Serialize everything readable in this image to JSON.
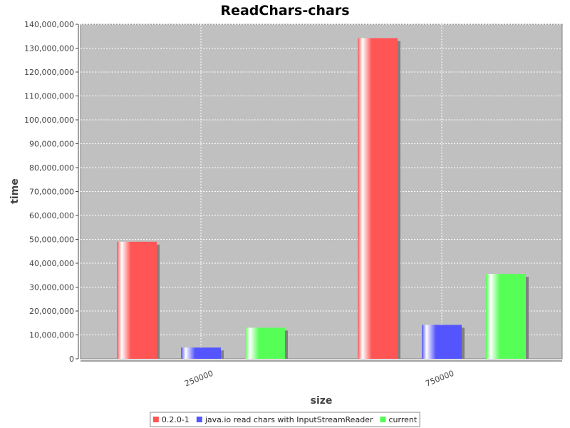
{
  "chart_data": {
    "type": "bar",
    "title": "ReadChars-chars",
    "xlabel": "size",
    "ylabel": "time",
    "categories": [
      "250000",
      "750000"
    ],
    "series": [
      {
        "name": "0.2.0-1",
        "color": "#ff5555",
        "values": [
          49000000,
          134200000
        ]
      },
      {
        "name": "java.io read chars with InputStreamReader",
        "color": "#5555ff",
        "values": [
          4700000,
          14200000
        ]
      },
      {
        "name": "current",
        "color": "#55ff55",
        "values": [
          13000000,
          35500000
        ]
      }
    ],
    "ylim": [
      0,
      140000000
    ],
    "y_ticks": [
      "0",
      "10,000,000",
      "20,000,000",
      "30,000,000",
      "40,000,000",
      "50,000,000",
      "60,000,000",
      "70,000,000",
      "80,000,000",
      "90,000,000",
      "100,000,000",
      "110,000,000",
      "120,000,000",
      "130,000,000",
      "140,000,000"
    ],
    "y_tick_values": [
      0,
      10000000,
      20000000,
      30000000,
      40000000,
      50000000,
      60000000,
      70000000,
      80000000,
      90000000,
      100000000,
      110000000,
      120000000,
      130000000,
      140000000
    ],
    "plot_background": "#c0c0c0",
    "grid": true,
    "legend_position": "bottom"
  }
}
